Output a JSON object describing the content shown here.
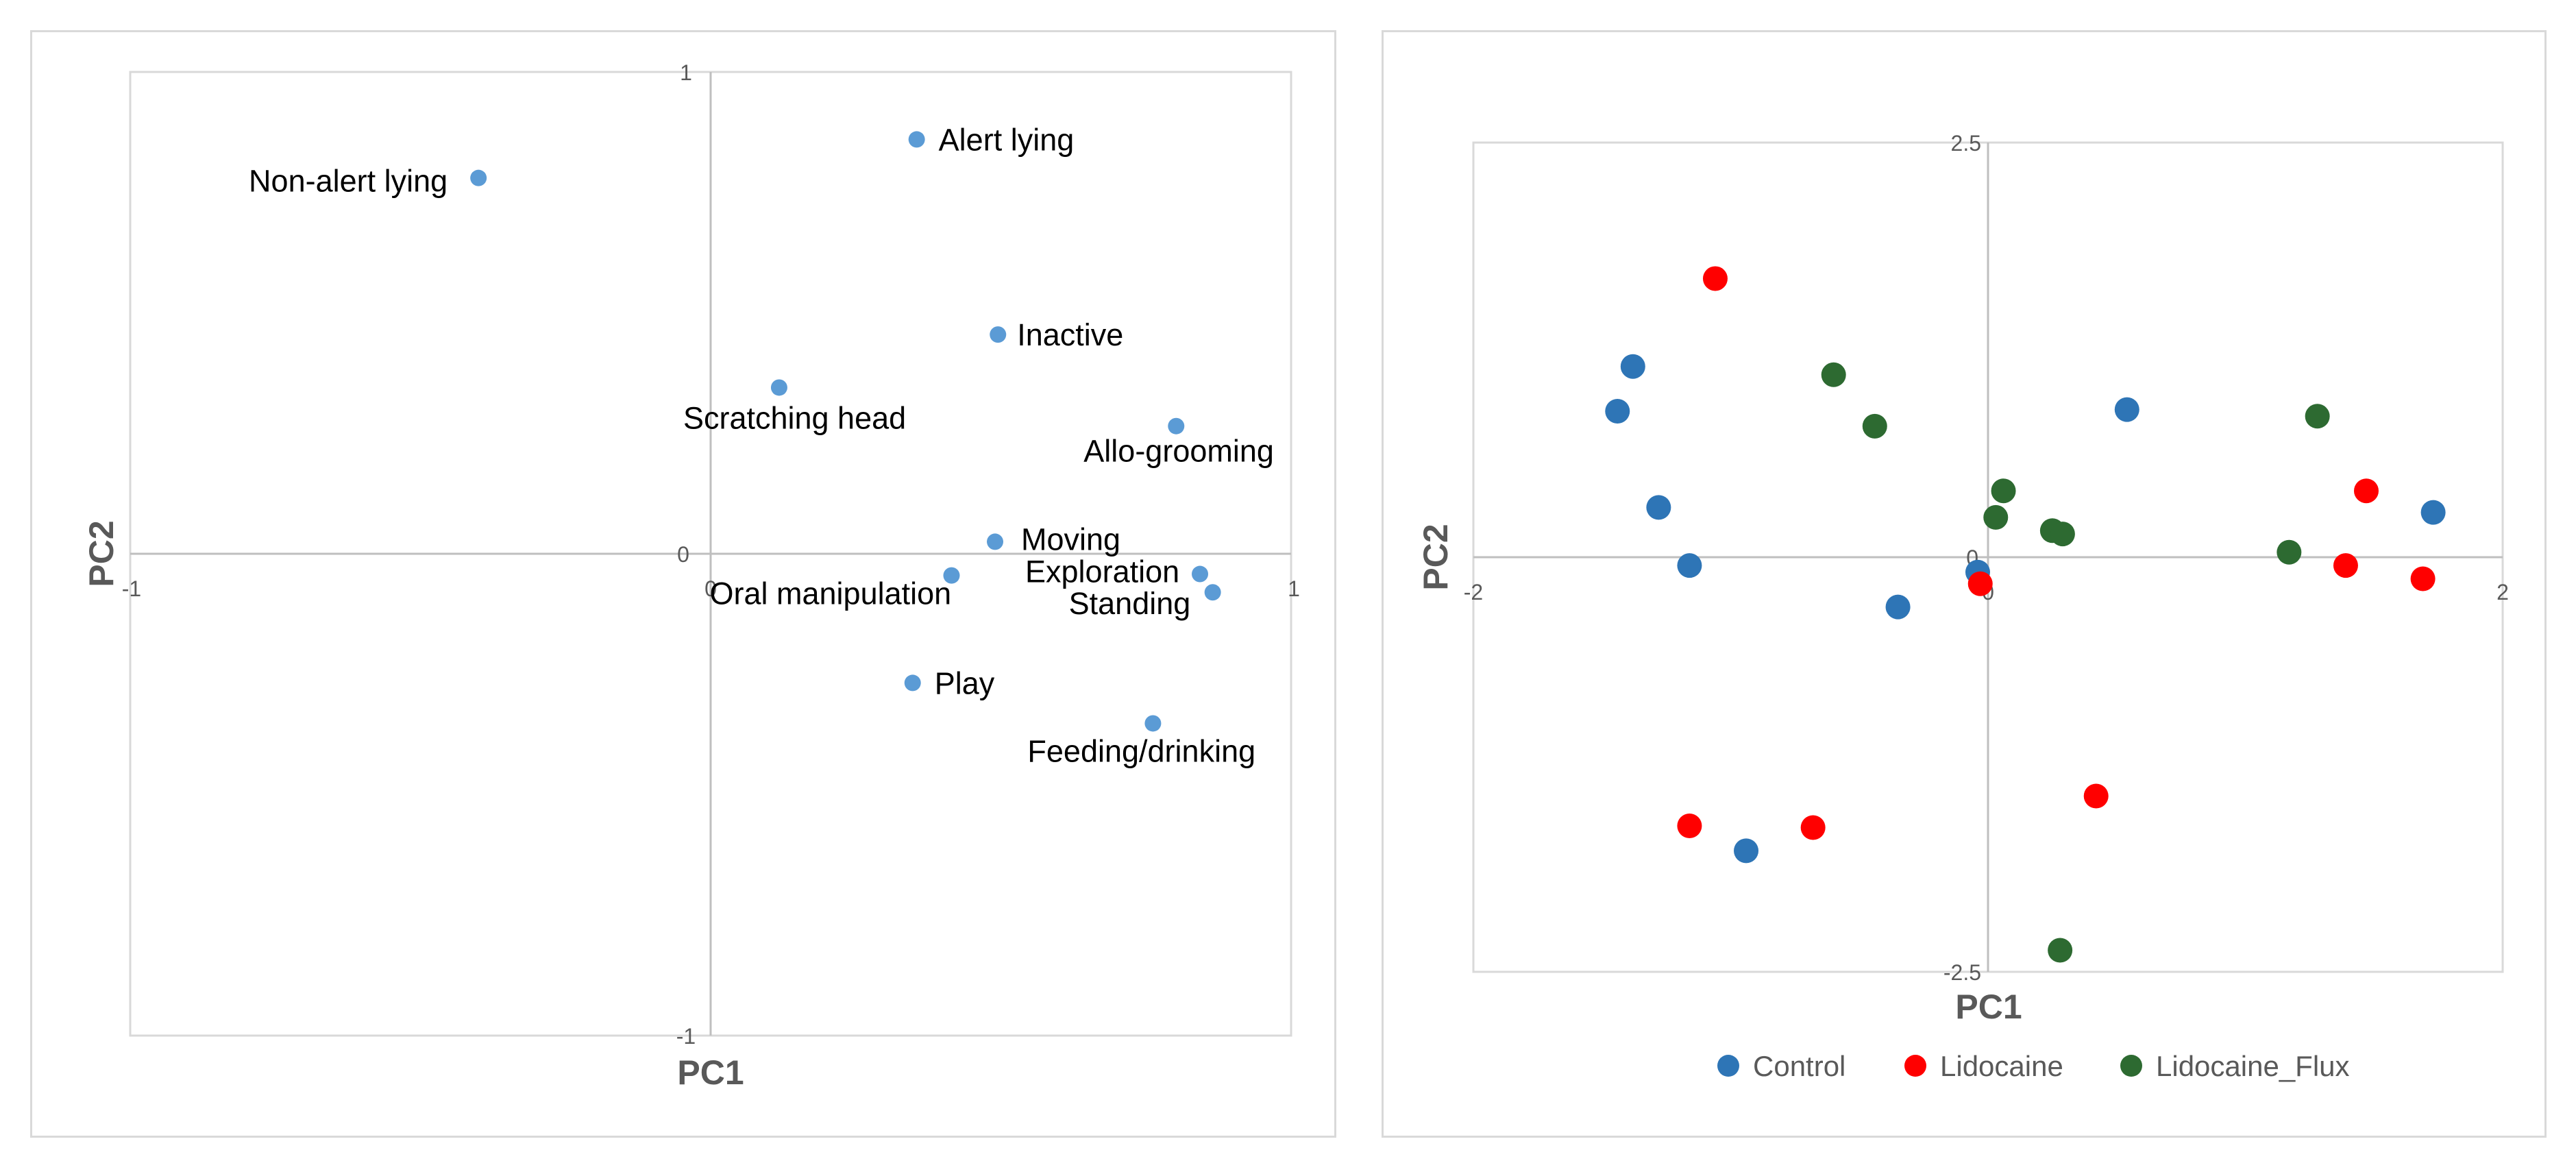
{
  "chart_data": [
    {
      "type": "scatter",
      "title": "",
      "xlabel": "PC1",
      "ylabel": "PC2",
      "xlim": [
        -1,
        1
      ],
      "ylim": [
        -1,
        1
      ],
      "xticks": [
        "-1",
        "0",
        "1"
      ],
      "yticks": [
        "-1",
        "0",
        "1"
      ],
      "grid": false,
      "legend": "none",
      "marker_color": "#5b9bd5",
      "points": [
        {
          "label": "Non-alert lying",
          "x": -0.4,
          "y": 0.78
        },
        {
          "label": "Alert lying",
          "x": 0.355,
          "y": 0.86
        },
        {
          "label": "Inactive",
          "x": 0.495,
          "y": 0.455
        },
        {
          "label": "Scratching head",
          "x": 0.118,
          "y": 0.345
        },
        {
          "label": "Allo-grooming",
          "x": 0.802,
          "y": 0.265
        },
        {
          "label": "Moving",
          "x": 0.49,
          "y": 0.025
        },
        {
          "label": "Oral manipulation",
          "x": 0.415,
          "y": -0.045
        },
        {
          "label": "Exploration",
          "x": 0.843,
          "y": -0.042
        },
        {
          "label": "Standing",
          "x": 0.865,
          "y": -0.08
        },
        {
          "label": "Play",
          "x": 0.348,
          "y": -0.268
        },
        {
          "label": "Feeding/drinking",
          "x": 0.762,
          "y": -0.352
        }
      ]
    },
    {
      "type": "scatter",
      "title": "",
      "xlabel": "PC1",
      "ylabel": "PC2",
      "xlim": [
        -2,
        2
      ],
      "ylim": [
        -2.5,
        2.5
      ],
      "xticks": [
        "-2",
        "0",
        "2"
      ],
      "yticks": [
        "-2.5",
        "0",
        "2.5"
      ],
      "grid": false,
      "legend": "bottom",
      "series": [
        {
          "name": "Control",
          "color": "#2e75b6",
          "points": [
            [
              -1.44,
              0.88
            ],
            [
              -1.38,
              1.15
            ],
            [
              -1.28,
              0.3
            ],
            [
              -1.16,
              -0.05
            ],
            [
              -0.94,
              -1.77
            ],
            [
              -0.35,
              -0.3
            ],
            [
              -0.04,
              -0.09
            ],
            [
              0.54,
              0.89
            ],
            [
              1.73,
              0.27
            ]
          ]
        },
        {
          "name": "Lidocaine",
          "color": "#ff0000",
          "points": [
            [
              -1.06,
              1.68
            ],
            [
              -1.16,
              -1.62
            ],
            [
              -0.68,
              -1.63
            ],
            [
              -0.03,
              -0.16
            ],
            [
              0.42,
              -1.44
            ],
            [
              1.47,
              0.4
            ],
            [
              1.39,
              -0.05
            ],
            [
              1.69,
              -0.13
            ]
          ]
        },
        {
          "name": "Lidocaine_Flux",
          "color": "#2d6a31",
          "points": [
            [
              -0.6,
              1.1
            ],
            [
              -0.44,
              0.79
            ],
            [
              0.06,
              0.4
            ],
            [
              0.03,
              0.24
            ],
            [
              0.25,
              0.16
            ],
            [
              0.29,
              0.14
            ],
            [
              1.17,
              0.03
            ],
            [
              1.28,
              0.85
            ],
            [
              0.28,
              -2.37
            ]
          ]
        }
      ]
    }
  ]
}
